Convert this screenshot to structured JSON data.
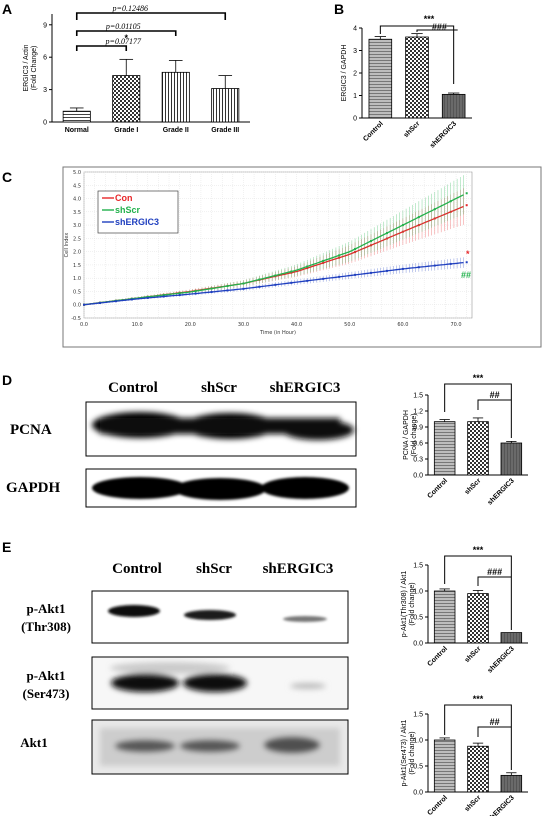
{
  "panels": {
    "A": "A",
    "B": "B",
    "C": "C",
    "D": "D",
    "E": "E"
  },
  "chart_data": [
    {
      "id": "A",
      "type": "bar",
      "categories": [
        "Normal",
        "Grade I",
        "Grade II",
        "Grade III"
      ],
      "values": [
        1.0,
        4.3,
        4.6,
        3.1
      ],
      "errors": [
        0.3,
        1.5,
        1.1,
        1.2
      ],
      "ylabel": "ERGIC3 / Actin\n(Fold Change)",
      "ylim": [
        0,
        10
      ],
      "yticks": [
        "0",
        "3",
        "6",
        "9"
      ],
      "annotations": [
        "p=0.07177",
        "p=0.01105",
        "*",
        "p=0.12486"
      ]
    },
    {
      "id": "B",
      "type": "bar",
      "categories": [
        "Control",
        "shScr",
        "shERGIC3"
      ],
      "values": [
        3.5,
        3.6,
        1.05
      ],
      "errors": [
        0.12,
        0.15,
        0.06
      ],
      "ylabel": "ERGIC3 / GAPDH",
      "ylim": [
        0,
        4
      ],
      "yticks": [
        "0",
        "1",
        "2",
        "3",
        "4"
      ],
      "annotations": [
        "***",
        "###"
      ]
    },
    {
      "id": "C",
      "type": "line",
      "xlabel": "Time (in Hour)",
      "ylabel": "Cell Index",
      "xlim": [
        0,
        73
      ],
      "ylim": [
        -0.5,
        5.0
      ],
      "xticks": [
        "0.0",
        "10.0",
        "20.0",
        "30.0",
        "40.0",
        "50.0",
        "60.0",
        "70.0"
      ],
      "yticks": [
        "-0.5",
        "0.0",
        "0.5",
        "1.0",
        "1.5",
        "2.0",
        "2.5",
        "3.0",
        "3.5",
        "4.0",
        "4.5",
        "5.0"
      ],
      "series": [
        {
          "name": "Con",
          "color": "#e8272a",
          "x": [
            0,
            10,
            20,
            30,
            40,
            50,
            60,
            72
          ],
          "y": [
            0.0,
            0.25,
            0.5,
            0.8,
            1.25,
            1.9,
            2.75,
            3.75
          ],
          "err": [
            0.03,
            0.05,
            0.08,
            0.12,
            0.2,
            0.35,
            0.5,
            0.7
          ]
        },
        {
          "name": "shScr",
          "color": "#22b14c",
          "x": [
            0,
            10,
            20,
            30,
            40,
            50,
            60,
            72
          ],
          "y": [
            0.0,
            0.25,
            0.48,
            0.8,
            1.3,
            2.0,
            3.0,
            4.2
          ],
          "err": [
            0.03,
            0.05,
            0.08,
            0.12,
            0.22,
            0.38,
            0.55,
            0.75
          ]
        },
        {
          "name": "shERGIC3",
          "color": "#1f3fbf",
          "x": [
            0,
            10,
            20,
            30,
            40,
            50,
            60,
            72
          ],
          "y": [
            0.0,
            0.22,
            0.4,
            0.6,
            0.85,
            1.1,
            1.35,
            1.6
          ],
          "err": [
            0.03,
            0.04,
            0.06,
            0.08,
            0.1,
            0.13,
            0.16,
            0.2
          ]
        }
      ],
      "annotations": [
        "*",
        "##"
      ]
    },
    {
      "id": "D",
      "type": "bar",
      "categories": [
        "Control",
        "shScr",
        "shERGIC3"
      ],
      "values": [
        1.0,
        1.0,
        0.6
      ],
      "errors": [
        0.04,
        0.07,
        0.03
      ],
      "ylabel": "PCNA / GAPDH\n(Fold change)",
      "ylim": [
        0,
        1.5
      ],
      "yticks": [
        "0.0",
        "0.3",
        "0.6",
        "0.9",
        "1.2",
        "1.5"
      ],
      "annotations": [
        "***",
        "##"
      ]
    },
    {
      "id": "E1",
      "type": "bar",
      "categories": [
        "Control",
        "shScr",
        "shERGIC3"
      ],
      "values": [
        1.0,
        0.95,
        0.2
      ],
      "errors": [
        0.04,
        0.06,
        0.0
      ],
      "ylabel": "p-Akt1(Thr308) / Akt1\n(Fold change)",
      "ylim": [
        0,
        1.5
      ],
      "yticks": [
        "0.0",
        "0.5",
        "1.0",
        "1.5"
      ],
      "annotations": [
        "***",
        "###"
      ]
    },
    {
      "id": "E2",
      "type": "bar",
      "categories": [
        "Control",
        "shScr",
        "shERGIC3"
      ],
      "values": [
        1.0,
        0.88,
        0.32
      ],
      "errors": [
        0.04,
        0.06,
        0.05
      ],
      "ylabel": "p-Akt1(Ser473) / Akt1\n(Fold change)",
      "ylim": [
        0,
        1.5
      ],
      "yticks": [
        "0.0",
        "0.5",
        "1.0",
        "1.5"
      ],
      "annotations": [
        "***",
        "##"
      ]
    }
  ],
  "blots": {
    "D": {
      "columns": [
        "Control",
        "shScr",
        "shERGIC3"
      ],
      "rows": [
        "PCNA",
        "GAPDH"
      ]
    },
    "E": {
      "columns": [
        "Control",
        "shScr",
        "shERGIC3"
      ],
      "rows": [
        [
          "p-Akt1",
          "(Thr308)"
        ],
        [
          "p-Akt1",
          "(Ser473)"
        ],
        [
          "Akt1"
        ]
      ]
    }
  },
  "colors": {
    "con": "#e8272a",
    "shscr": "#22b14c",
    "shergic3": "#1f3fbf"
  }
}
